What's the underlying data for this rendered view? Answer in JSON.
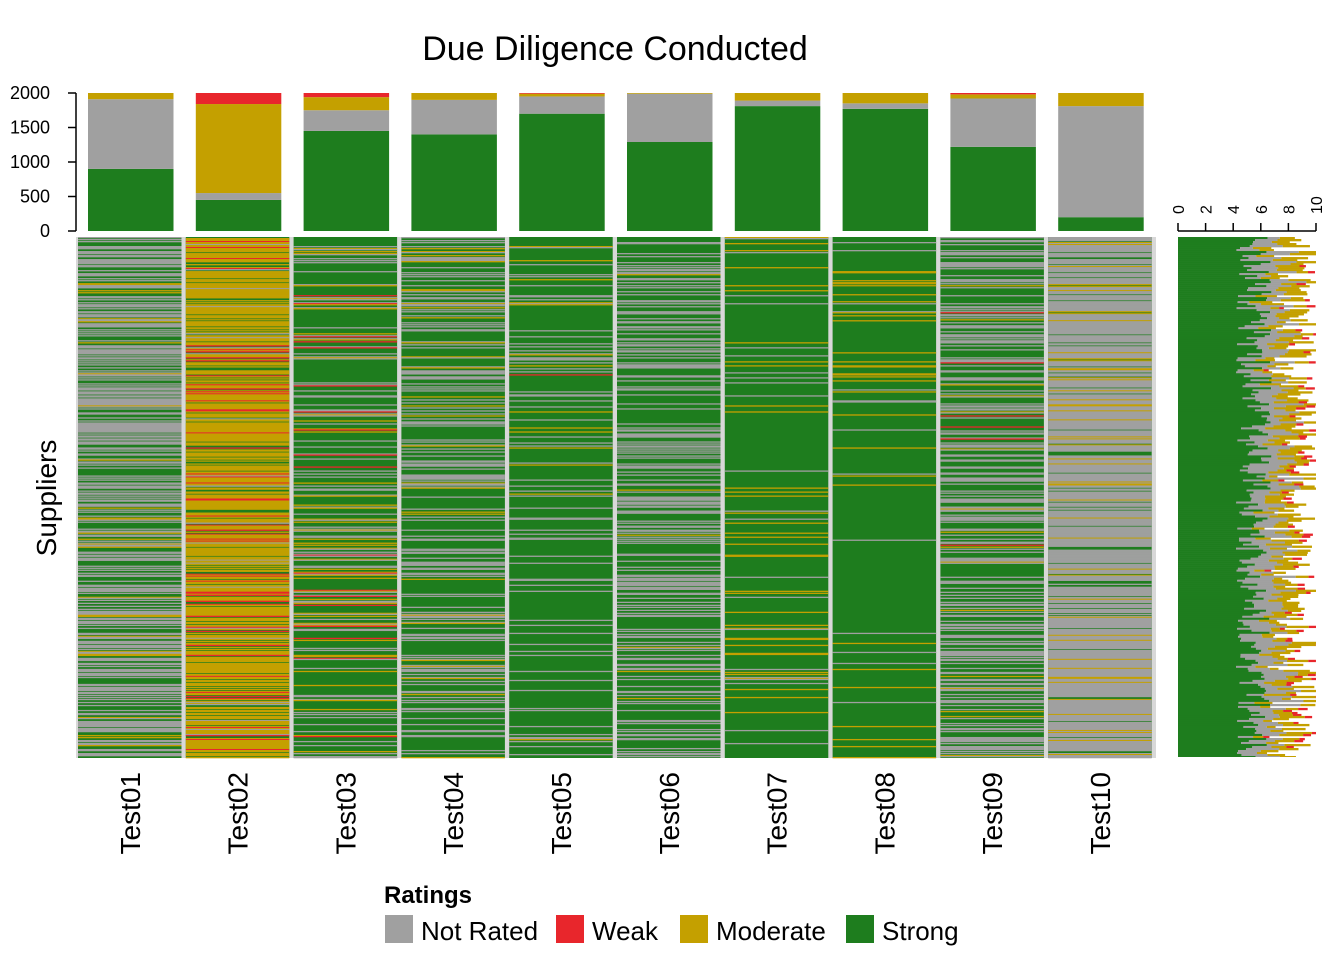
{
  "chart_data": {
    "type": "heatmap",
    "title": "Due Diligence Conducted",
    "ylabel": "Suppliers",
    "categories": [
      "Test01",
      "Test02",
      "Test03",
      "Test04",
      "Test05",
      "Test06",
      "Test07",
      "Test08",
      "Test09",
      "Test10"
    ],
    "rating_levels": [
      "Not Rated",
      "Weak",
      "Moderate",
      "Strong"
    ],
    "colors": {
      "Not Rated": "#A0A0A0",
      "Weak": "#E8262C",
      "Moderate": "#C4A000",
      "Strong": "#1E7D1E"
    },
    "legend": {
      "title": "Ratings",
      "entries": [
        "Not Rated",
        "Weak",
        "Moderate",
        "Strong"
      ],
      "placement": "bottom"
    },
    "top_bars": {
      "ylim": [
        0,
        2000
      ],
      "yticks": [
        0,
        500,
        1000,
        1500,
        2000
      ],
      "series": [
        {
          "name": "Strong",
          "values": [
            900,
            450,
            1450,
            1400,
            1700,
            1290,
            1810,
            1770,
            1220,
            200
          ]
        },
        {
          "name": "Not Rated",
          "values": [
            1010,
            100,
            300,
            500,
            250,
            700,
            80,
            80,
            700,
            1610
          ]
        },
        {
          "name": "Moderate",
          "values": [
            90,
            1290,
            190,
            100,
            40,
            10,
            110,
            150,
            60,
            190
          ]
        },
        {
          "name": "Weak",
          "values": [
            0,
            160,
            60,
            0,
            10,
            0,
            0,
            0,
            20,
            0
          ]
        }
      ]
    },
    "side_bars": {
      "xlim": [
        0,
        10
      ],
      "xticks": [
        0,
        2,
        4,
        6,
        8,
        10
      ]
    }
  }
}
